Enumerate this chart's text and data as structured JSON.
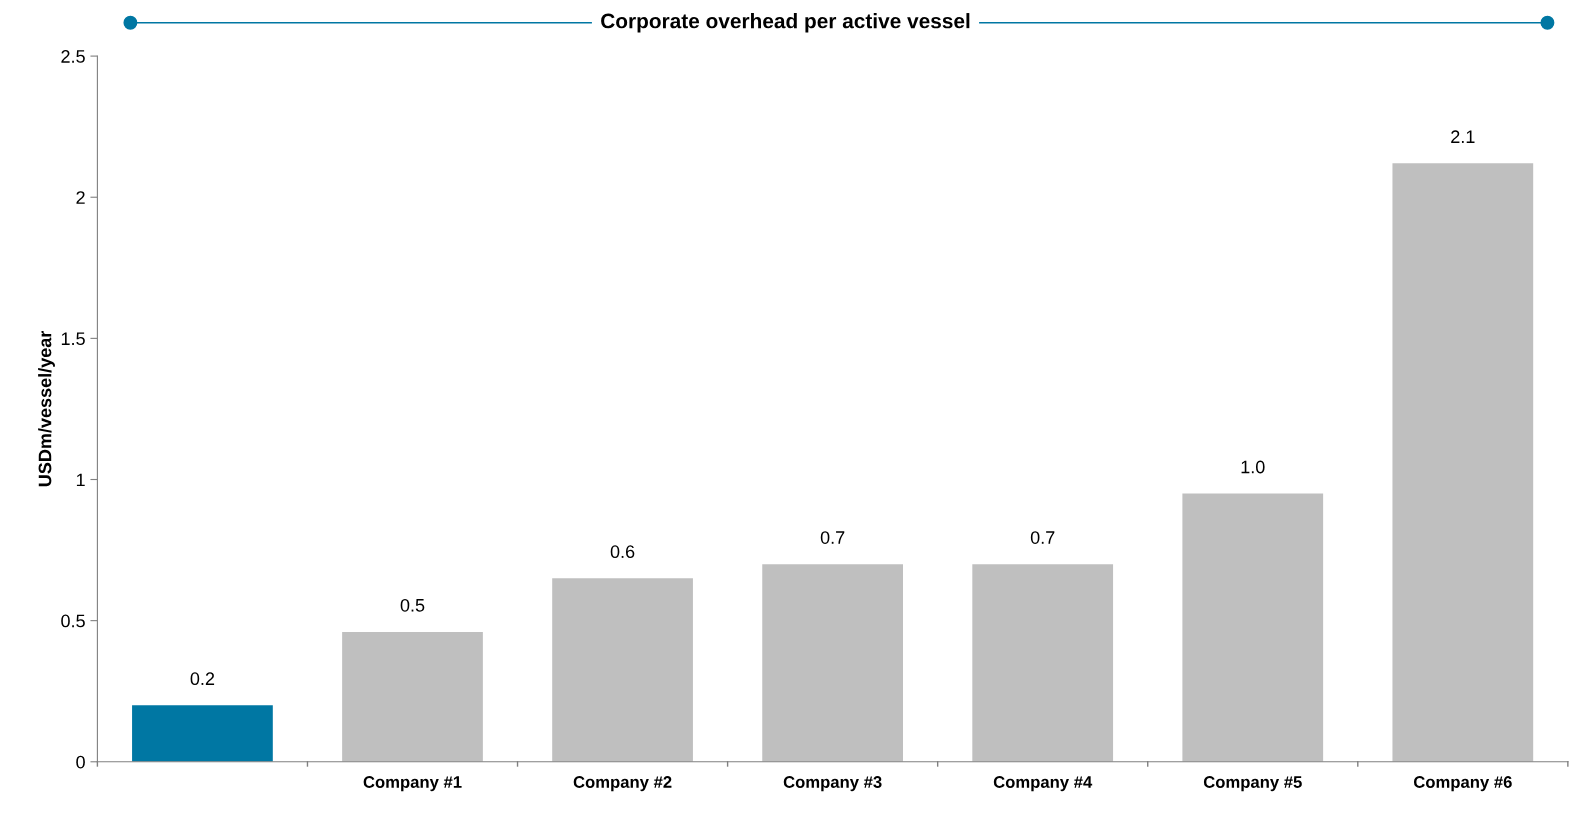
{
  "chart_data": {
    "type": "bar",
    "title": "Corporate overhead per active vessel",
    "ylabel": "USDm/vessel/year",
    "categories": [
      null,
      "Company #1",
      "Company #2",
      "Company #3",
      "Company #4",
      "Company #5",
      "Company #6"
    ],
    "values": [
      0.2,
      0.46,
      0.65,
      0.7,
      0.7,
      0.95,
      2.12
    ],
    "value_labels": [
      "0.2",
      "0.5",
      "0.6",
      "0.7",
      "0.7",
      "1.0",
      "2.1"
    ],
    "colors": [
      "#0077a3",
      "#bfbfbf",
      "#bfbfbf",
      "#bfbfbf",
      "#bfbfbf",
      "#bfbfbf",
      "#bfbfbf"
    ],
    "ylim": [
      0,
      2.5
    ],
    "yticks": [
      {
        "value": 0,
        "label": "0"
      },
      {
        "value": 0.5,
        "label": "0.5"
      },
      {
        "value": 1,
        "label": "1"
      },
      {
        "value": 1.5,
        "label": "1.5"
      },
      {
        "value": 2,
        "label": "2"
      },
      {
        "value": 2.5,
        "label": "2.5"
      }
    ],
    "grid": false,
    "legend": false
  }
}
